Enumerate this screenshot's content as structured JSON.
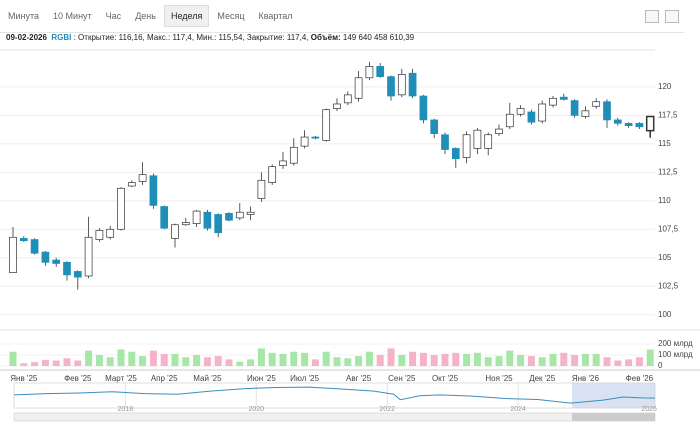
{
  "toolbar": {
    "tabs": [
      "Минута",
      "10 Минут",
      "Час",
      "День",
      "Неделя",
      "Месяц",
      "Квартал"
    ],
    "active": 4
  },
  "info": {
    "date": "09-02-2026",
    "ticker": "RGBI",
    "text": ": Открытие: 116,16, Макс.: 117,4, Мин.: 115,54, Закрытие: 117,4,",
    "volume_label": "Объём:",
    "volume": "149 640 458 610,39"
  },
  "chart_data": {
    "type": "candlestick",
    "categories": [
      null,
      "Янв '25",
      null,
      null,
      null,
      null,
      "Фев '25",
      null,
      null,
      null,
      "Март '25",
      null,
      null,
      null,
      "Апр '25",
      null,
      null,
      null,
      "Май '25",
      null,
      null,
      null,
      null,
      "Июн '25",
      null,
      null,
      null,
      "Июл '25",
      null,
      null,
      null,
      null,
      "Авг '25",
      null,
      null,
      null,
      "Сен '25",
      null,
      null,
      null,
      "Окт '25",
      null,
      null,
      null,
      null,
      "Ноя '25",
      null,
      null,
      null,
      "Дек '25",
      null,
      null,
      null,
      "Янв '26",
      null,
      null,
      null,
      null,
      "Фев '26",
      null
    ],
    "open": [
      103.7,
      106.7,
      106.6,
      105.5,
      104.8,
      104.6,
      103.8,
      103.4,
      106.6,
      106.8,
      107.5,
      111.3,
      111.7,
      112.2,
      109.5,
      106.7,
      107.9,
      108.0,
      109.0,
      108.8,
      108.9,
      108.5,
      108.8,
      110.2,
      111.6,
      113.1,
      113.3,
      114.8,
      115.6,
      115.3,
      118.1,
      118.6,
      119.0,
      120.8,
      121.8,
      120.9,
      119.3,
      121.2,
      119.2,
      117.1,
      115.8,
      114.6,
      113.8,
      114.6,
      114.6,
      115.9,
      116.5,
      117.6,
      117.8,
      117.0,
      118.4,
      119.1,
      118.8,
      117.4,
      118.3,
      118.7,
      117.1,
      116.8,
      116.8,
      116.16
    ],
    "high": [
      107.7,
      106.9,
      106.7,
      105.6,
      105.0,
      104.7,
      103.9,
      108.6,
      107.6,
      107.8,
      111.2,
      111.8,
      113.4,
      112.4,
      109.6,
      108.0,
      108.5,
      109.2,
      109.2,
      108.9,
      109.0,
      109.8,
      109.5,
      112.5,
      113.2,
      114.3,
      115.5,
      116.2,
      115.7,
      118.1,
      119.0,
      119.6,
      121.4,
      122.2,
      122.1,
      121.0,
      121.6,
      121.6,
      119.3,
      117.2,
      116.0,
      114.7,
      116.1,
      116.4,
      116.0,
      116.7,
      118.6,
      118.4,
      118.0,
      118.8,
      119.2,
      119.4,
      118.9,
      118.3,
      119.0,
      118.9,
      117.3,
      116.9,
      116.9,
      117.4
    ],
    "low": [
      103.7,
      106.4,
      105.3,
      104.3,
      104.2,
      103.0,
      102.2,
      103.2,
      106.4,
      106.6,
      107.4,
      111.2,
      111.4,
      109.3,
      107.5,
      105.9,
      107.8,
      107.7,
      107.4,
      106.8,
      108.2,
      108.3,
      108.3,
      109.9,
      111.4,
      112.8,
      113.1,
      114.6,
      115.4,
      115.2,
      117.9,
      118.4,
      118.7,
      120.6,
      120.8,
      118.8,
      119.1,
      119.0,
      116.8,
      115.5,
      114.1,
      112.9,
      113.3,
      114.1,
      114.0,
      115.7,
      116.3,
      117.4,
      116.7,
      116.8,
      118.2,
      118.8,
      117.3,
      117.2,
      118.1,
      116.4,
      116.6,
      116.4,
      116.3,
      115.54
    ],
    "close": [
      106.8,
      106.5,
      105.4,
      104.6,
      104.5,
      103.5,
      103.3,
      106.8,
      107.4,
      107.5,
      111.1,
      111.6,
      112.3,
      109.6,
      107.6,
      107.9,
      108.1,
      109.1,
      107.6,
      107.2,
      108.3,
      109.0,
      109.0,
      111.8,
      113.0,
      113.5,
      114.7,
      115.6,
      115.5,
      118.0,
      118.5,
      119.3,
      120.8,
      121.8,
      120.9,
      119.2,
      121.1,
      119.2,
      117.1,
      115.9,
      114.5,
      113.7,
      115.8,
      116.2,
      115.8,
      116.3,
      117.6,
      118.1,
      116.9,
      118.5,
      119.0,
      118.9,
      117.5,
      117.9,
      118.7,
      117.1,
      116.8,
      116.6,
      116.5,
      117.4
    ],
    "volume": [
      130,
      25,
      35,
      55,
      50,
      70,
      50,
      140,
      100,
      80,
      150,
      130,
      90,
      140,
      110,
      110,
      80,
      100,
      80,
      90,
      60,
      40,
      60,
      160,
      120,
      110,
      130,
      120,
      60,
      130,
      80,
      70,
      90,
      130,
      100,
      160,
      100,
      130,
      120,
      100,
      110,
      120,
      110,
      120,
      80,
      90,
      140,
      100,
      90,
      80,
      110,
      120,
      100,
      110,
      110,
      80,
      50,
      60,
      80,
      149.64
    ],
    "up_color": "#ffffff",
    "down_color": "#1f8fb8",
    "volume_up_color": "#a6e6a6",
    "volume_down_color": "#f6b3c7",
    "ylim": [
      99.1,
      122.8
    ],
    "yticks": [
      100,
      {
        "value": 102.5,
        "label": "102,5"
      },
      105,
      {
        "value": 107.5,
        "label": "107,5"
      },
      110,
      {
        "value": 112.5,
        "label": "112,5"
      },
      115,
      {
        "value": 117.5,
        "label": "117,5"
      },
      120
    ],
    "volume_lim": [
      0,
      230
    ],
    "volume_ticks": [
      0,
      {
        "value": 100,
        "label": "100 млрд"
      },
      {
        "value": 200,
        "label": "200 млрд"
      }
    ],
    "grid": true
  },
  "navigator": {
    "type": "line",
    "color": "#3c8dbc",
    "x": [
      2016.3,
      2016.8,
      2017.3,
      2017.8,
      2018.3,
      2018.8,
      2019.3,
      2019.8,
      2020.3,
      2020.8,
      2021.3,
      2021.8,
      2022.1,
      2022.2,
      2022.5,
      2022.8,
      2023.3,
      2023.8,
      2024.3,
      2024.8,
      2025.3,
      2025.6,
      2025.9,
      2026.09
    ],
    "values": [
      128,
      132,
      134,
      138,
      132,
      130,
      140,
      148,
      152,
      153,
      147,
      140,
      130,
      112,
      125,
      128,
      124,
      116,
      113,
      101,
      111,
      121,
      118,
      117.4
    ],
    "xlim": [
      2016.3,
      2026.09
    ],
    "ylim": [
      95,
      160
    ],
    "xticks": [
      2018,
      2020,
      2022,
      2024,
      2026
    ]
  }
}
